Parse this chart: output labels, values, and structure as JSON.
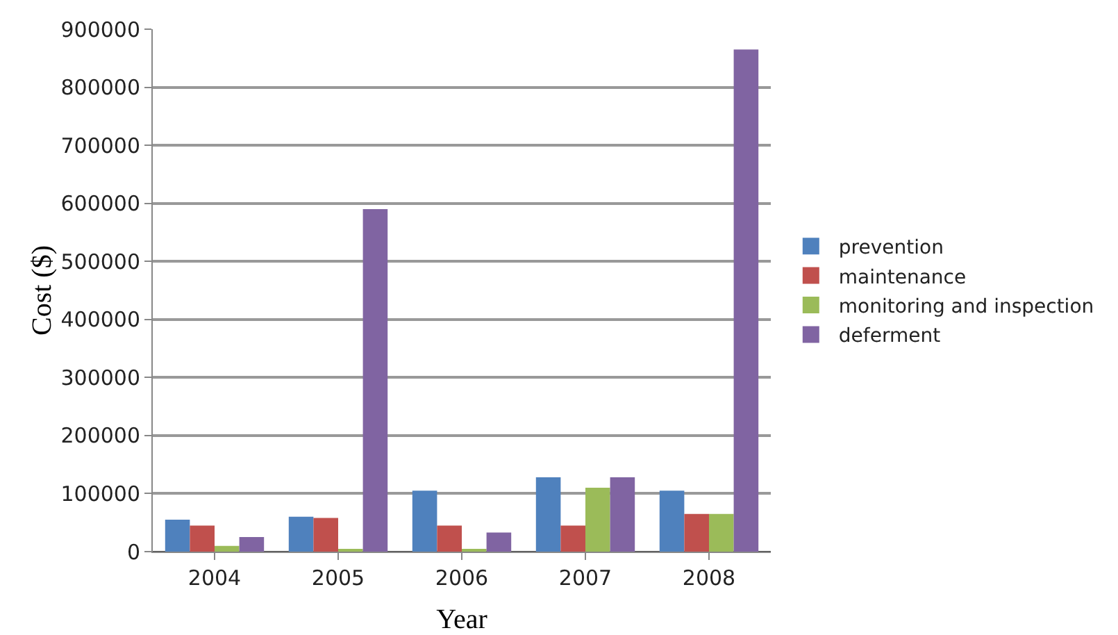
{
  "chart_data": {
    "type": "bar",
    "xlabel": "Year",
    "ylabel": "Cost ($)",
    "categories": [
      "2004",
      "2005",
      "2006",
      "2007",
      "2008"
    ],
    "series": [
      {
        "name": "prevention",
        "color": "#4f81bd",
        "values": [
          55000,
          60000,
          105000,
          128000,
          105000
        ]
      },
      {
        "name": "maintenance",
        "color": "#c0504d",
        "values": [
          45000,
          58000,
          45000,
          45000,
          65000
        ]
      },
      {
        "name": "monitoring and inspection",
        "color": "#9bbb59",
        "values": [
          10000,
          3000,
          3000,
          110000,
          65000
        ]
      },
      {
        "name": "deferment",
        "color": "#8064a2",
        "values": [
          25000,
          590000,
          33000,
          128000,
          865000
        ]
      }
    ],
    "ylim": [
      0,
      900000
    ],
    "yticks": [
      0,
      100000,
      200000,
      300000,
      400000,
      500000,
      600000,
      700000,
      800000,
      900000
    ],
    "grid": "y",
    "legend": "right"
  }
}
